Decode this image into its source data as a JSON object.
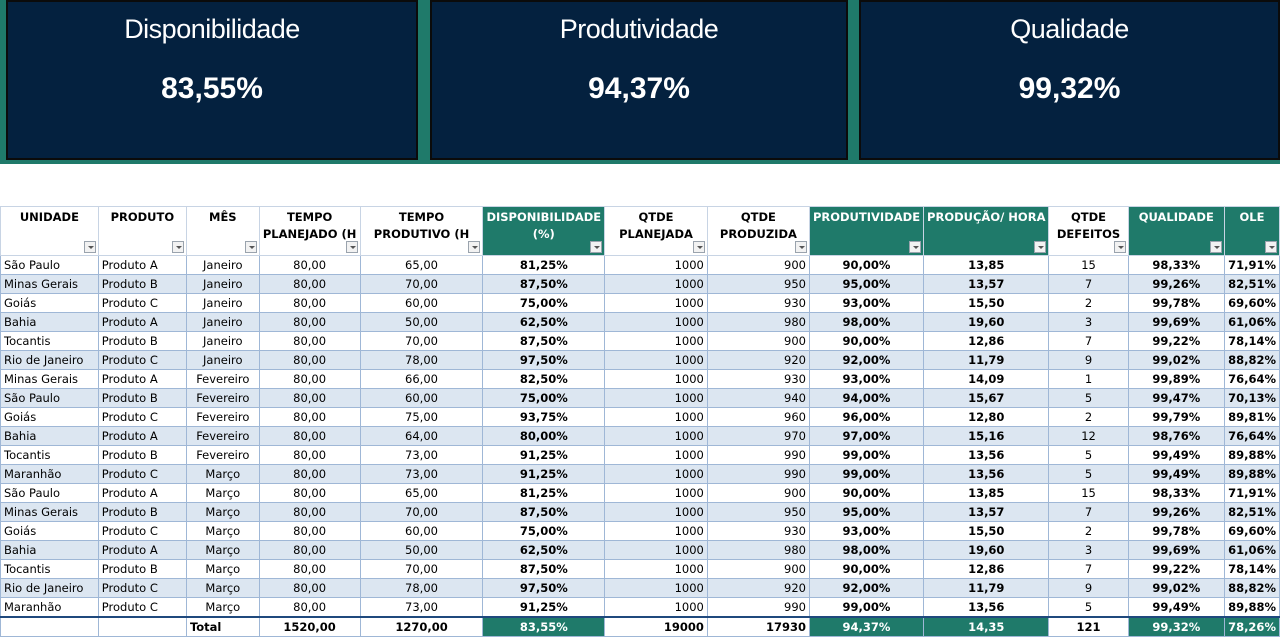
{
  "kpis": [
    {
      "title": "Disponibilidade",
      "value": "83,55%"
    },
    {
      "title": "Produtividade",
      "value": "94,37%"
    },
    {
      "title": "Qualidade",
      "value": "99,32%"
    }
  ],
  "table": {
    "headers": {
      "unidade": "UNIDADE",
      "produto": "PRODUTO",
      "mes": "MÊS",
      "tempo_planejado_1": "TEMPO",
      "tempo_planejado_2": "PLANEJADO (H",
      "tempo_produtivo_1": "TEMPO",
      "tempo_produtivo_2": "PRODUTIVO (H",
      "disponibilidade_1": "DISPONIBILIDADE",
      "disponibilidade_2": "(%)",
      "qtde_planejada_1": "QTDE",
      "qtde_planejada_2": "PLANEJADA",
      "qtde_produzida_1": "QTDE",
      "qtde_produzida_2": "PRODUZIDA",
      "produtividade": "PRODUTIVIDADE",
      "producao_hora": "PRODUÇÃO/ HORA",
      "qtde_defeitos_1": "QTDE",
      "qtde_defeitos_2": "DEFEITOS",
      "qualidade": "QUALIDADE",
      "ole": "OLE"
    },
    "rows": [
      [
        "São Paulo",
        "Produto A",
        "Janeiro",
        "80,00",
        "65,00",
        "81,25%",
        "1000",
        "900",
        "90,00%",
        "13,85",
        "15",
        "98,33%",
        "71,91%"
      ],
      [
        "Minas Gerais",
        "Produto B",
        "Janeiro",
        "80,00",
        "70,00",
        "87,50%",
        "1000",
        "950",
        "95,00%",
        "13,57",
        "7",
        "99,26%",
        "82,51%"
      ],
      [
        "Goiás",
        "Produto C",
        "Janeiro",
        "80,00",
        "60,00",
        "75,00%",
        "1000",
        "930",
        "93,00%",
        "15,50",
        "2",
        "99,78%",
        "69,60%"
      ],
      [
        "Bahia",
        "Produto A",
        "Janeiro",
        "80,00",
        "50,00",
        "62,50%",
        "1000",
        "980",
        "98,00%",
        "19,60",
        "3",
        "99,69%",
        "61,06%"
      ],
      [
        "Tocantis",
        "Produto B",
        "Janeiro",
        "80,00",
        "70,00",
        "87,50%",
        "1000",
        "900",
        "90,00%",
        "12,86",
        "7",
        "99,22%",
        "78,14%"
      ],
      [
        "Rio de Janeiro",
        "Produto C",
        "Janeiro",
        "80,00",
        "78,00",
        "97,50%",
        "1000",
        "920",
        "92,00%",
        "11,79",
        "9",
        "99,02%",
        "88,82%"
      ],
      [
        "Minas Gerais",
        "Produto A",
        "Fevereiro",
        "80,00",
        "66,00",
        "82,50%",
        "1000",
        "930",
        "93,00%",
        "14,09",
        "1",
        "99,89%",
        "76,64%"
      ],
      [
        "São Paulo",
        "Produto B",
        "Fevereiro",
        "80,00",
        "60,00",
        "75,00%",
        "1000",
        "940",
        "94,00%",
        "15,67",
        "5",
        "99,47%",
        "70,13%"
      ],
      [
        "Goiás",
        "Produto C",
        "Fevereiro",
        "80,00",
        "75,00",
        "93,75%",
        "1000",
        "960",
        "96,00%",
        "12,80",
        "2",
        "99,79%",
        "89,81%"
      ],
      [
        "Bahia",
        "Produto A",
        "Fevereiro",
        "80,00",
        "64,00",
        "80,00%",
        "1000",
        "970",
        "97,00%",
        "15,16",
        "12",
        "98,76%",
        "76,64%"
      ],
      [
        "Tocantis",
        "Produto B",
        "Fevereiro",
        "80,00",
        "73,00",
        "91,25%",
        "1000",
        "990",
        "99,00%",
        "13,56",
        "5",
        "99,49%",
        "89,88%"
      ],
      [
        "Maranhão",
        "Produto C",
        "Março",
        "80,00",
        "73,00",
        "91,25%",
        "1000",
        "990",
        "99,00%",
        "13,56",
        "5",
        "99,49%",
        "89,88%"
      ],
      [
        "São Paulo",
        "Produto A",
        "Março",
        "80,00",
        "65,00",
        "81,25%",
        "1000",
        "900",
        "90,00%",
        "13,85",
        "15",
        "98,33%",
        "71,91%"
      ],
      [
        "Minas Gerais",
        "Produto B",
        "Março",
        "80,00",
        "70,00",
        "87,50%",
        "1000",
        "950",
        "95,00%",
        "13,57",
        "7",
        "99,26%",
        "82,51%"
      ],
      [
        "Goiás",
        "Produto C",
        "Março",
        "80,00",
        "60,00",
        "75,00%",
        "1000",
        "930",
        "93,00%",
        "15,50",
        "2",
        "99,78%",
        "69,60%"
      ],
      [
        "Bahia",
        "Produto A",
        "Março",
        "80,00",
        "50,00",
        "62,50%",
        "1000",
        "980",
        "98,00%",
        "19,60",
        "3",
        "99,69%",
        "61,06%"
      ],
      [
        "Tocantis",
        "Produto B",
        "Março",
        "80,00",
        "70,00",
        "87,50%",
        "1000",
        "900",
        "90,00%",
        "12,86",
        "7",
        "99,22%",
        "78,14%"
      ],
      [
        "Rio de Janeiro",
        "Produto C",
        "Março",
        "80,00",
        "78,00",
        "97,50%",
        "1000",
        "920",
        "92,00%",
        "11,79",
        "9",
        "99,02%",
        "88,82%"
      ],
      [
        "Maranhão",
        "Produto C",
        "Março",
        "80,00",
        "73,00",
        "91,25%",
        "1000",
        "990",
        "99,00%",
        "13,56",
        "5",
        "99,49%",
        "89,88%"
      ]
    ],
    "total": {
      "label": "Total",
      "tempo_planejado": "1520,00",
      "tempo_produtivo": "1270,00",
      "disponibilidade": "83,55%",
      "qtde_planejada": "19000",
      "qtde_produzida": "17930",
      "produtividade": "94,37%",
      "producao_hora": "14,35",
      "qtde_defeitos": "121",
      "qualidade": "99,32%",
      "ole": "78,26%"
    }
  },
  "colors": {
    "kpi_background": "#04213f",
    "accent_teal": "#1f7a6a",
    "band_row": "#dce6f1"
  }
}
